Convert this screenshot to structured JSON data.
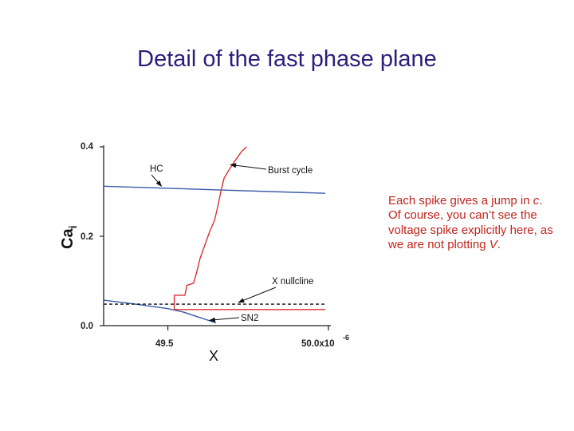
{
  "slide": {
    "title": "Detail of the fast phase plane",
    "caption": {
      "part1": "Each spike gives a jump in ",
      "var_c": "c",
      "part2": ". Of course, you can’t see the voltage spike explicitly here, as we are not plotting ",
      "var_v": "V",
      "part3": "."
    }
  },
  "chart_data": {
    "type": "line",
    "xlabel": "X",
    "ylabel": "Ca",
    "ylabel_subscript": "i",
    "xlim": [
      49.3,
      50.0
    ],
    "ylim": [
      0.0,
      0.4
    ],
    "x_ticks": [
      {
        "value": 49.5,
        "label": "49.5"
      },
      {
        "value": 50.0,
        "label": "50.0x10"
      }
    ],
    "x_tick_exponent": "-6",
    "y_ticks": [
      {
        "value": 0.0,
        "label": "0.0"
      },
      {
        "value": 0.2,
        "label": "0.2"
      },
      {
        "value": 0.4,
        "label": "0.4"
      }
    ],
    "grid": false,
    "colors": {
      "blue": "#3a5aa8",
      "red": "#d93030",
      "black": "#111111"
    },
    "series": [
      {
        "name": "HC",
        "color": "#3a5aa8",
        "style": "solid",
        "points": [
          [
            49.3,
            0.312
          ],
          [
            49.99,
            0.296
          ]
        ]
      },
      {
        "name": "SN2",
        "color": "#3a5aa8",
        "style": "solid",
        "points": [
          [
            49.3,
            0.057
          ],
          [
            49.4,
            0.048
          ],
          [
            49.5,
            0.038
          ],
          [
            49.55,
            0.03
          ],
          [
            49.6,
            0.018
          ],
          [
            49.65,
            0.006
          ]
        ]
      },
      {
        "name": "X nullcline",
        "color": "#111111",
        "style": "dashed",
        "points": [
          [
            49.3,
            0.048
          ],
          [
            49.99,
            0.048
          ]
        ]
      },
      {
        "name": "Burst cycle",
        "color": "#d93030",
        "style": "solid",
        "points": [
          [
            49.99,
            0.036
          ],
          [
            49.52,
            0.036
          ],
          [
            49.52,
            0.068
          ],
          [
            49.553,
            0.068
          ],
          [
            49.556,
            0.078
          ],
          [
            49.559,
            0.09
          ],
          [
            49.58,
            0.095
          ],
          [
            49.59,
            0.12
          ],
          [
            49.6,
            0.15
          ],
          [
            49.615,
            0.18
          ],
          [
            49.63,
            0.21
          ],
          [
            49.645,
            0.235
          ],
          [
            49.655,
            0.265
          ],
          [
            49.665,
            0.3
          ],
          [
            49.675,
            0.33
          ],
          [
            49.69,
            0.348
          ],
          [
            49.71,
            0.37
          ],
          [
            49.73,
            0.39
          ],
          [
            49.745,
            0.4
          ]
        ]
      }
    ],
    "annotations": [
      {
        "text": "HC",
        "arrow_to": [
          49.48,
          0.312
        ]
      },
      {
        "text": "Burst cycle",
        "arrow_to": [
          49.695,
          0.36
        ]
      },
      {
        "text": "X nullcline",
        "arrow_to": [
          49.72,
          0.052
        ]
      },
      {
        "text": "SN2",
        "arrow_to": [
          49.63,
          0.012
        ]
      }
    ]
  }
}
